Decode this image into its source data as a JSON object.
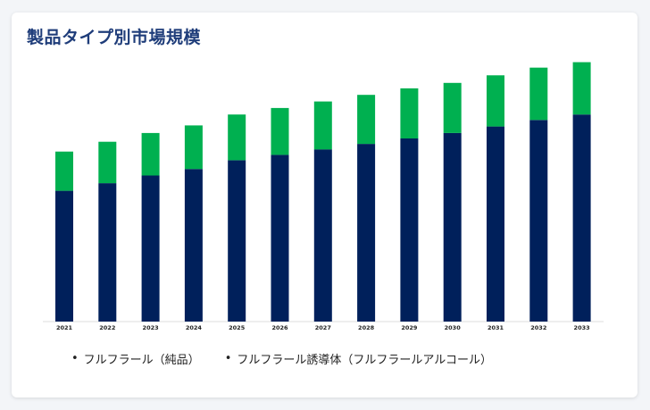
{
  "chart_data": {
    "type": "bar",
    "stacked": true,
    "title": "製品タイプ別市場規模",
    "categories": [
      "2021",
      "2022",
      "2023",
      "2024",
      "2025",
      "2026",
      "2027",
      "2028",
      "2029",
      "2030",
      "2031",
      "2032",
      "2033"
    ],
    "series": [
      {
        "name": "フルフラール（純品）",
        "color": "#00205b",
        "values": [
          12.0,
          12.7,
          13.4,
          14.0,
          14.8,
          15.3,
          15.8,
          16.3,
          16.8,
          17.3,
          17.9,
          18.5,
          19.0
        ]
      },
      {
        "name": "フルフラール誘導体（フルフラールアルコール）",
        "color": "#00b050",
        "values": [
          3.6,
          3.8,
          3.9,
          4.0,
          4.2,
          4.3,
          4.4,
          4.5,
          4.6,
          4.6,
          4.7,
          4.8,
          4.8
        ]
      }
    ],
    "ylim": [
      0,
      25
    ],
    "grid": false,
    "legend_position": "bottom"
  }
}
